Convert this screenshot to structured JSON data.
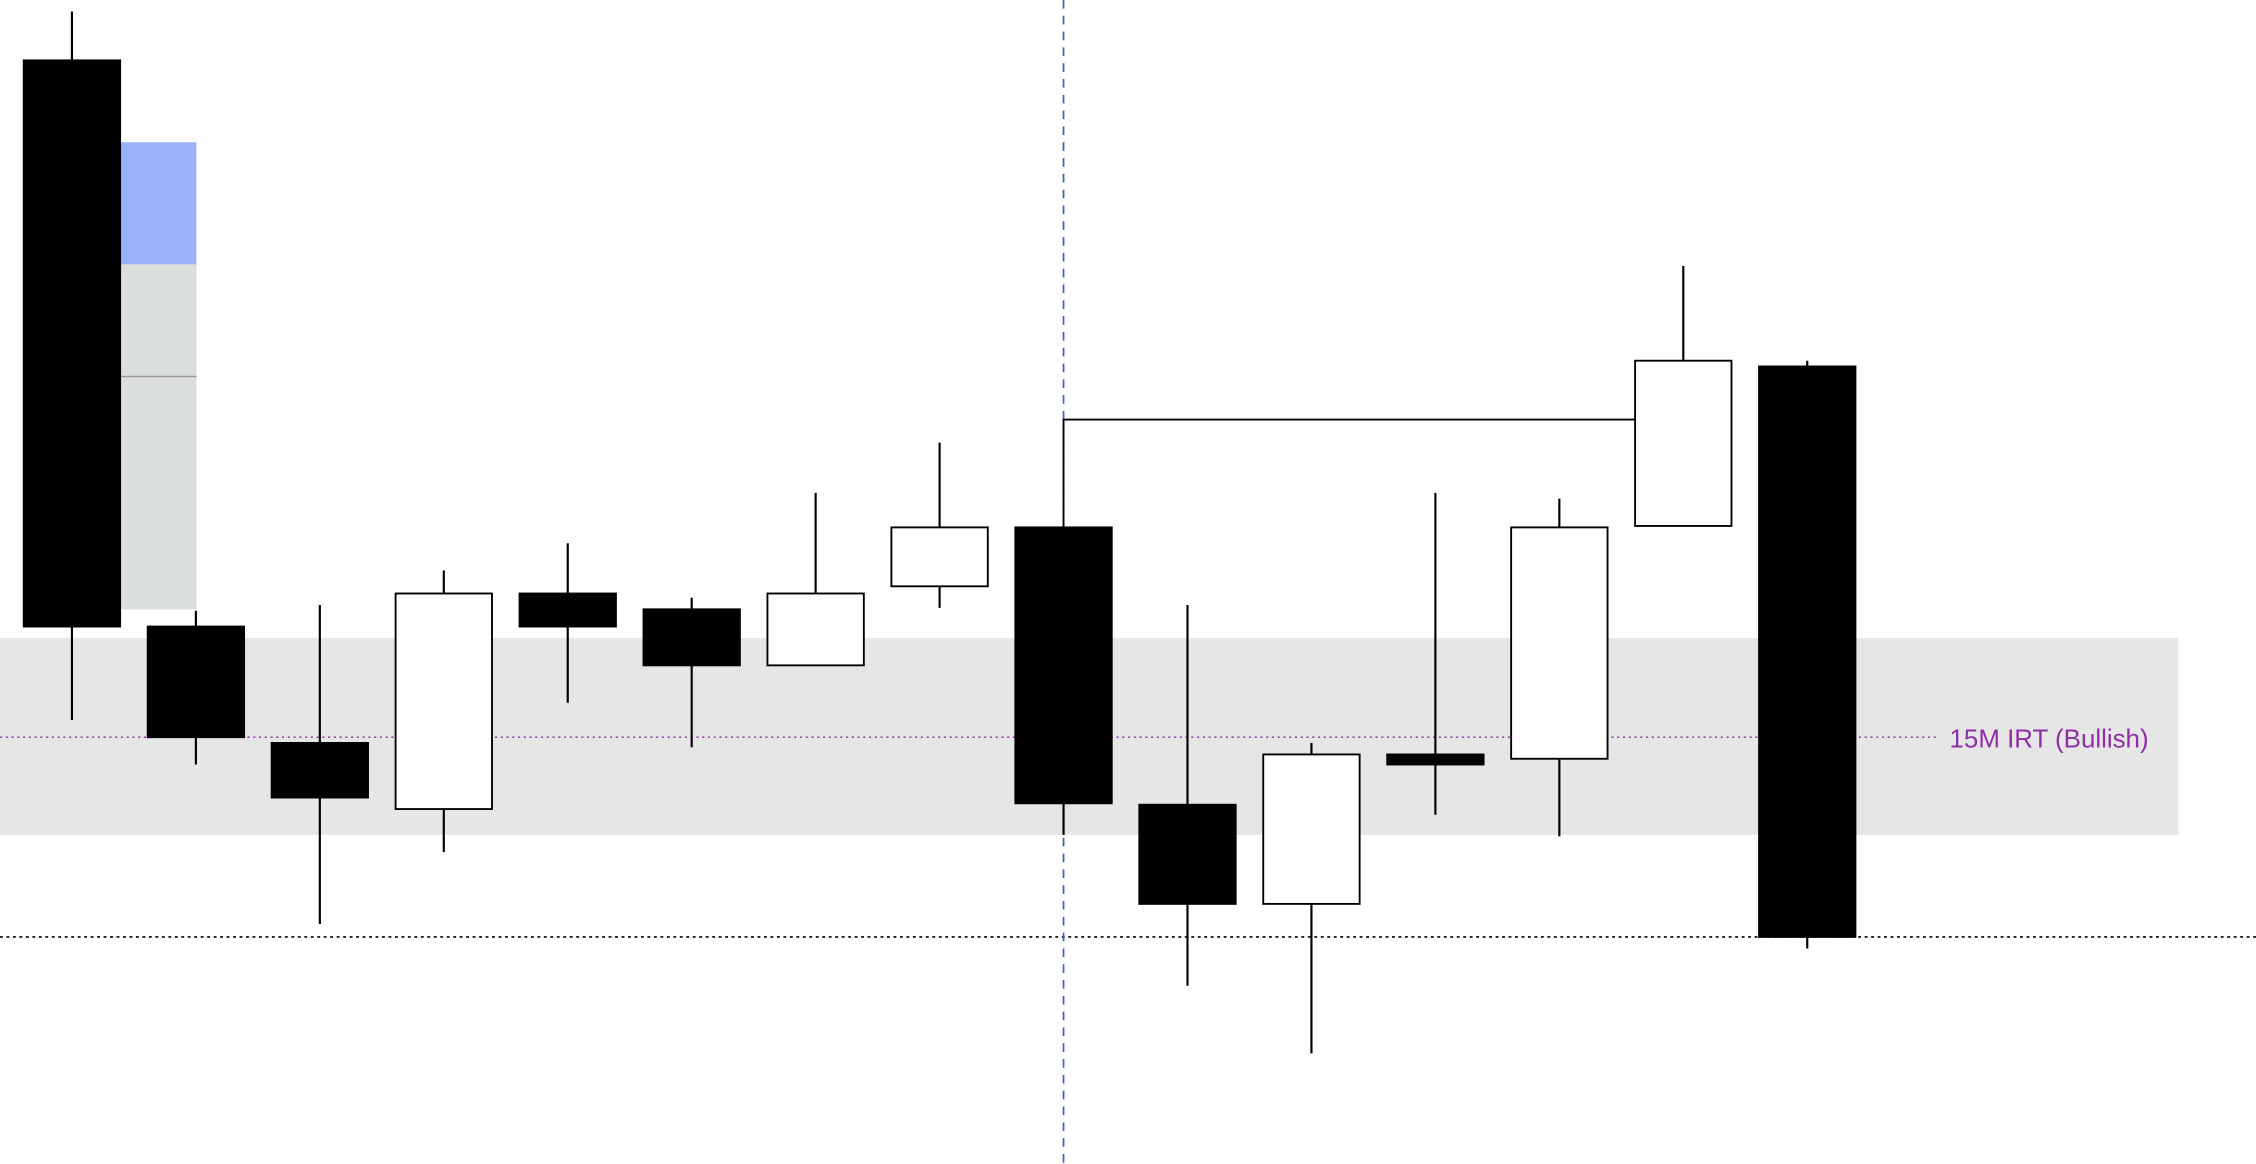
{
  "chart_data": {
    "type": "candlestick",
    "title": "",
    "xlabel": "",
    "ylabel": "",
    "ylim": [
      0,
      810
    ],
    "grid": false,
    "candles": [
      {
        "open": 768,
        "high": 802,
        "low": 309,
        "close": 374
      },
      {
        "open": 374,
        "high": 385,
        "low": 278,
        "close": 297
      },
      {
        "open": 293,
        "high": 389,
        "low": 167,
        "close": 255
      },
      {
        "open": 247,
        "high": 413,
        "low": 217,
        "close": 397
      },
      {
        "open": 397,
        "high": 432,
        "low": 321,
        "close": 374
      },
      {
        "open": 386,
        "high": 394,
        "low": 290,
        "close": 347
      },
      {
        "open": 347,
        "high": 467,
        "low": 347,
        "close": 397
      },
      {
        "open": 402,
        "high": 502,
        "low": 387,
        "close": 443
      },
      {
        "open": 443,
        "high": 443,
        "low": 229,
        "close": 251
      },
      {
        "open": 250,
        "high": 389,
        "low": 124,
        "close": 181
      },
      {
        "open": 181,
        "high": 293,
        "low": 77,
        "close": 285
      },
      {
        "open": 285,
        "high": 467,
        "low": 243,
        "close": 278
      },
      {
        "open": 282,
        "high": 463,
        "low": 228,
        "close": 443
      },
      {
        "open": 444,
        "high": 625,
        "low": 444,
        "close": 559
      },
      {
        "open": 555,
        "high": 559,
        "low": 150,
        "close": 158
      }
    ],
    "colors": {
      "bullish": "#ffffff",
      "bearish": "#000000",
      "outline": "#000000"
    },
    "annotations": {
      "irt_zone": {
        "top": 366,
        "bottom": 229,
        "color": "#e6e6e6"
      },
      "irt_line": {
        "level": 297,
        "label": "15M IRT (Bullish)",
        "color": "#8e2fa6"
      },
      "low_level_line": {
        "level": 158,
        "color": "#000000"
      },
      "vertical_marker": {
        "candle_index": 8,
        "color": "#3f5fbf"
      },
      "bracket": {
        "level": 518,
        "from_candle": 8,
        "to_candle": 13
      },
      "fvg_box": {
        "top": 711,
        "mid": 626,
        "bottom": 386,
        "eq": 548,
        "upper_color": "#9bb2f8",
        "lower_color": "#dbdfdc",
        "eq_color": "#999999"
      }
    }
  }
}
